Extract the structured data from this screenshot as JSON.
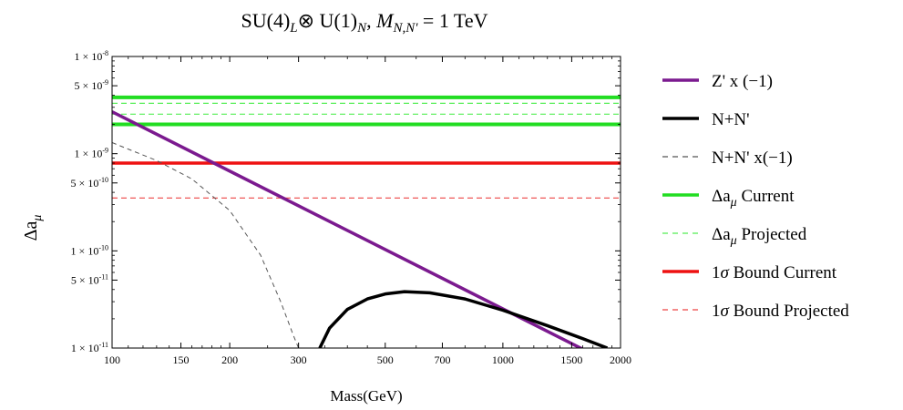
{
  "chart_data": {
    "type": "line",
    "title": "SU(4)ₗ⊗ U(1)ₙ, Mₙ,ₙ' = 1 TeV",
    "xlabel": "Mass(GeV)",
    "ylabel": "Δaμ",
    "x_scale": "log",
    "y_scale": "log",
    "xlim": [
      100,
      2000
    ],
    "ylim": [
      1e-11,
      1e-08
    ],
    "x_ticks": [
      {
        "value": 100,
        "label": "100"
      },
      {
        "value": 150,
        "label": "150"
      },
      {
        "value": 200,
        "label": "200"
      },
      {
        "value": 300,
        "label": "300"
      },
      {
        "value": 500,
        "label": "500"
      },
      {
        "value": 700,
        "label": "700"
      },
      {
        "value": 1000,
        "label": "1000"
      },
      {
        "value": 1500,
        "label": "1500"
      },
      {
        "value": 2000,
        "label": "2000"
      }
    ],
    "y_ticks": [
      {
        "value": 1e-08,
        "mant": "1",
        "exp": "-8"
      },
      {
        "value": 5e-09,
        "mant": "5",
        "exp": "-9"
      },
      {
        "value": 1e-09,
        "mant": "1",
        "exp": "-9"
      },
      {
        "value": 5e-10,
        "mant": "5",
        "exp": "-10"
      },
      {
        "value": 1e-10,
        "mant": "1",
        "exp": "-10"
      },
      {
        "value": 5e-11,
        "mant": "5",
        "exp": "-11"
      },
      {
        "value": 1e-11,
        "mant": "1",
        "exp": "-11"
      }
    ],
    "legend_position": "right-outside",
    "series": [
      {
        "name": "Z' x (−1)",
        "color": "#7b1a8f",
        "style": "solid",
        "x": [
          100,
          2000
        ],
        "y": [
          2.7e-09,
          6.2e-12
        ]
      },
      {
        "name": "N+N'",
        "color": "#000000",
        "style": "solid",
        "x": [
          340,
          360,
          400,
          450,
          500,
          560,
          650,
          800,
          1000,
          1300,
          1600,
          1850
        ],
        "y": [
          1e-11,
          1.6e-11,
          2.5e-11,
          3.2e-11,
          3.6e-11,
          3.8e-11,
          3.7e-11,
          3.2e-11,
          2.45e-11,
          1.7e-11,
          1.25e-11,
          1e-11
        ]
      },
      {
        "name": "N+N' x(−1)",
        "color": "#555555",
        "style": "dashed",
        "x": [
          100,
          130,
          160,
          200,
          240,
          270,
          290,
          300
        ],
        "y": [
          1.3e-09,
          8.5e-10,
          5.5e-10,
          2.6e-10,
          9e-11,
          3e-11,
          1.4e-11,
          1e-11
        ]
      },
      {
        "name": "Δaμ Current",
        "color": "#22dd22",
        "style": "band",
        "bounds": [
          2e-09,
          3.8e-09
        ]
      },
      {
        "name": "Δaμ Projected",
        "color": "#55ee55",
        "style": "dashed-band",
        "bounds": [
          2.55e-09,
          3.3e-09
        ]
      },
      {
        "name": "1σ Bound Current",
        "color": "#ee1111",
        "style": "solid-hline",
        "value": 8e-10
      },
      {
        "name": "1σ Bound Projected",
        "color": "#ee4444",
        "style": "dashed-hline",
        "value": 3.5e-10
      }
    ]
  }
}
